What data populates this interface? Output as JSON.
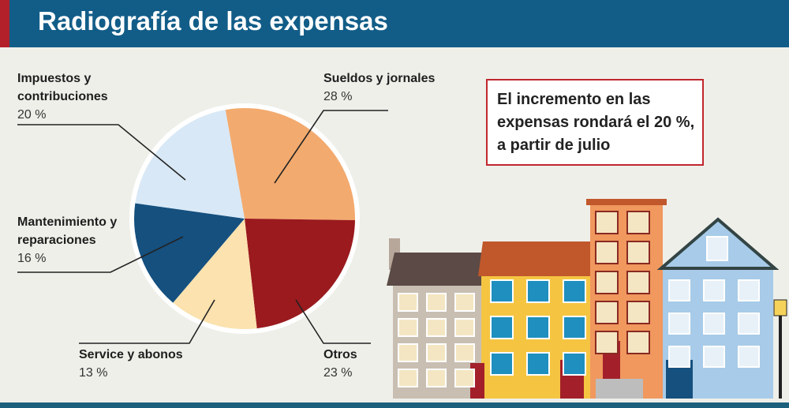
{
  "chart_data": {
    "type": "pie",
    "title": "Radiografía de las expensas",
    "categories": [
      "Sueldos y jornales",
      "Otros",
      "Service y abonos",
      "Mantenimiento y reparaciones",
      "Impuestos y contribuciones"
    ],
    "values": [
      28,
      23,
      13,
      16,
      20
    ],
    "value_labels": [
      "28 %",
      "23 %",
      "13 %",
      "16 %",
      "20 %"
    ],
    "colors": [
      "#f3aa6e",
      "#9a1a1e",
      "#fbe2ae",
      "#15507f",
      "#d8e8f6"
    ],
    "annotation": "El incremento en las expensas rondará el 20 %, a partir de julio"
  }
}
